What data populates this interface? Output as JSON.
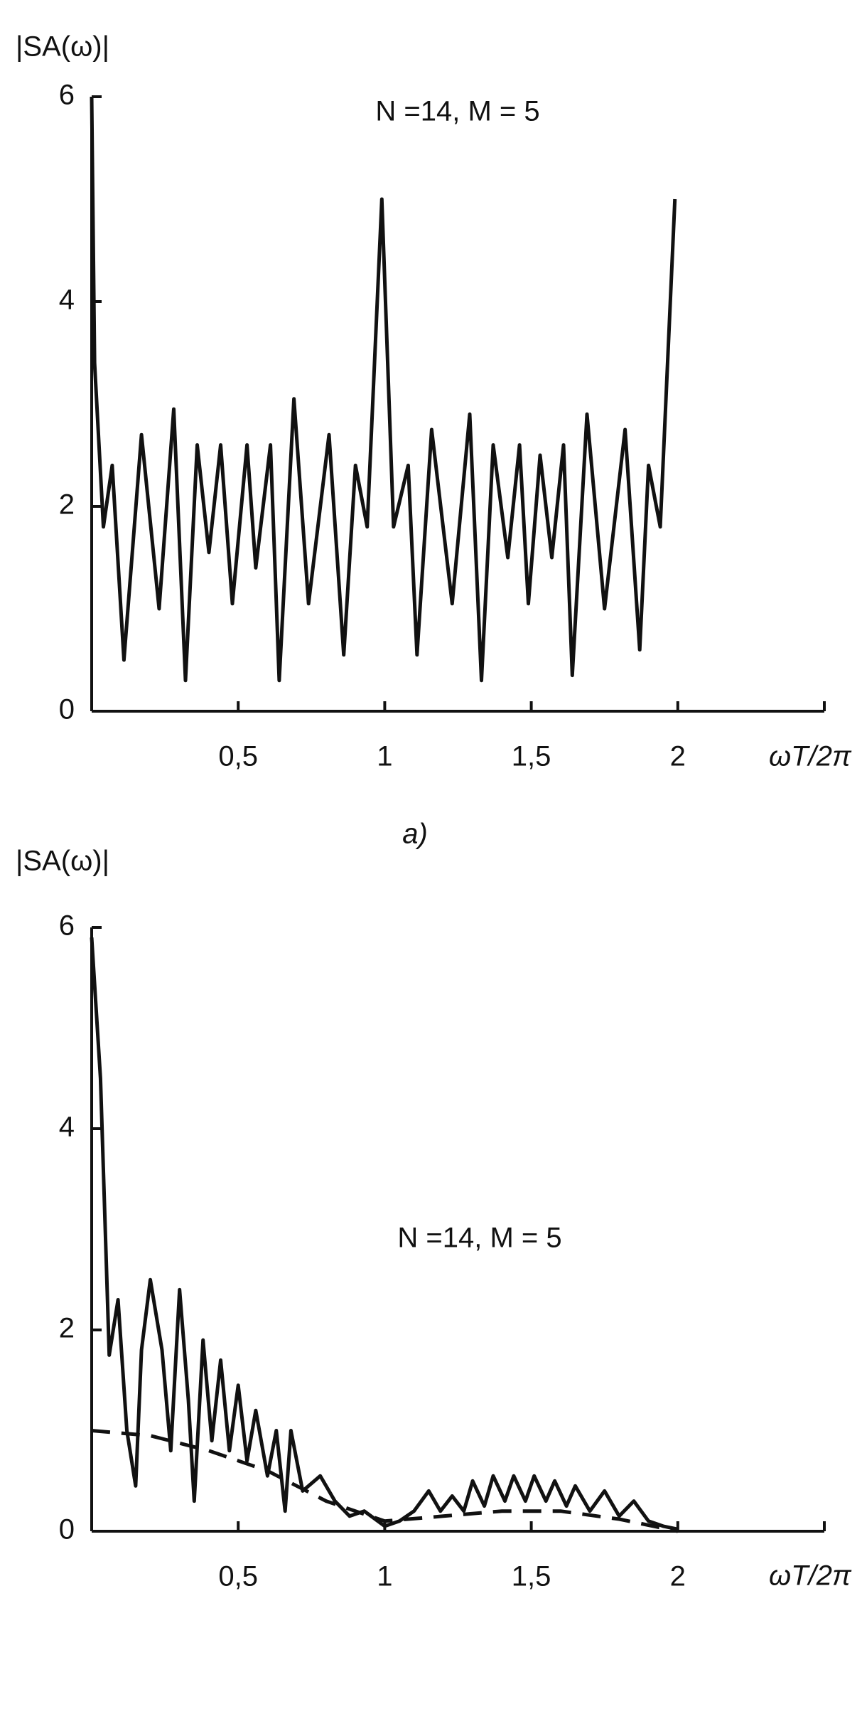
{
  "chart_data": [
    {
      "type": "line",
      "y_label": "|SA(ω)|",
      "x_label": "ωT/2π",
      "annotation": "N =14, M = 5",
      "caption": "a)",
      "xlim": [
        0,
        2.5
      ],
      "ylim": [
        0,
        6
      ],
      "xticks": [
        {
          "value": 0.5,
          "label": "0,5"
        },
        1,
        {
          "value": 1.5,
          "label": "1,5"
        },
        2
      ],
      "yticks": [
        0,
        2,
        4,
        6
      ],
      "series": [
        {
          "color": "#111111",
          "line_style": "solid",
          "x": [
            0,
            0.01,
            0.04,
            0.07,
            0.11,
            0.17,
            0.23,
            0.28,
            0.32,
            0.36,
            0.4,
            0.44,
            0.48,
            0.53,
            0.56,
            0.61,
            0.64,
            0.69,
            0.74,
            0.81,
            0.86,
            0.9,
            0.94,
            0.99,
            1.03,
            1.08,
            1.11,
            1.16,
            1.23,
            1.29,
            1.33,
            1.37,
            1.42,
            1.46,
            1.49,
            1.53,
            1.57,
            1.61,
            1.64,
            1.69,
            1.75,
            1.82,
            1.87,
            1.9,
            1.94,
            1.99
          ],
          "values": [
            6.0,
            3.4,
            1.8,
            2.4,
            0.5,
            2.7,
            1.0,
            2.95,
            0.3,
            2.6,
            1.55,
            2.6,
            1.05,
            2.6,
            1.4,
            2.6,
            0.3,
            3.05,
            1.05,
            2.7,
            0.55,
            2.4,
            1.8,
            5.0,
            1.8,
            2.4,
            0.55,
            2.75,
            1.05,
            2.9,
            0.3,
            2.6,
            1.5,
            2.6,
            1.05,
            2.5,
            1.5,
            2.6,
            0.35,
            2.9,
            1.0,
            2.75,
            0.6,
            2.4,
            1.8,
            5.0
          ]
        }
      ]
    },
    {
      "type": "line",
      "y_label": "|SA(ω)|",
      "x_label": "ωT/2π",
      "annotation": "N =14, M = 5",
      "xlim": [
        0,
        2.5
      ],
      "ylim": [
        0,
        6
      ],
      "xticks": [
        {
          "value": 0.5,
          "label": "0,5"
        },
        1,
        {
          "value": 1.5,
          "label": "1,5"
        },
        2
      ],
      "yticks": [
        0,
        2,
        4,
        6
      ],
      "series": [
        {
          "color": "#111111",
          "line_style": "solid",
          "x": [
            0,
            0.03,
            0.06,
            0.09,
            0.12,
            0.15,
            0.17,
            0.2,
            0.24,
            0.27,
            0.3,
            0.33,
            0.35,
            0.38,
            0.41,
            0.44,
            0.47,
            0.5,
            0.53,
            0.56,
            0.6,
            0.63,
            0.66,
            0.68,
            0.72,
            0.78,
            0.83,
            0.88,
            0.93,
            1.0,
            1.05,
            1.1,
            1.15,
            1.19,
            1.23,
            1.27,
            1.3,
            1.34,
            1.37,
            1.41,
            1.44,
            1.48,
            1.51,
            1.55,
            1.58,
            1.62,
            1.65,
            1.7,
            1.75,
            1.8,
            1.85,
            1.9,
            1.95,
            2.0
          ],
          "values": [
            5.9,
            4.5,
            1.75,
            2.3,
            1.0,
            0.45,
            1.8,
            2.5,
            1.8,
            0.8,
            2.4,
            1.3,
            0.3,
            1.9,
            0.9,
            1.7,
            0.8,
            1.45,
            0.7,
            1.2,
            0.55,
            1.0,
            0.2,
            1.0,
            0.4,
            0.55,
            0.3,
            0.15,
            0.2,
            0.05,
            0.1,
            0.2,
            0.4,
            0.2,
            0.35,
            0.2,
            0.5,
            0.25,
            0.55,
            0.3,
            0.55,
            0.3,
            0.55,
            0.3,
            0.5,
            0.25,
            0.45,
            0.2,
            0.4,
            0.15,
            0.3,
            0.1,
            0.05,
            0.02
          ]
        },
        {
          "color": "#111111",
          "line_style": "dashed",
          "x": [
            0,
            0.2,
            0.4,
            0.6,
            0.8,
            1.0,
            1.2,
            1.4,
            1.6,
            1.8,
            2.0
          ],
          "values": [
            1.0,
            0.95,
            0.8,
            0.6,
            0.3,
            0.1,
            0.15,
            0.2,
            0.2,
            0.12,
            0.0
          ]
        }
      ]
    }
  ]
}
